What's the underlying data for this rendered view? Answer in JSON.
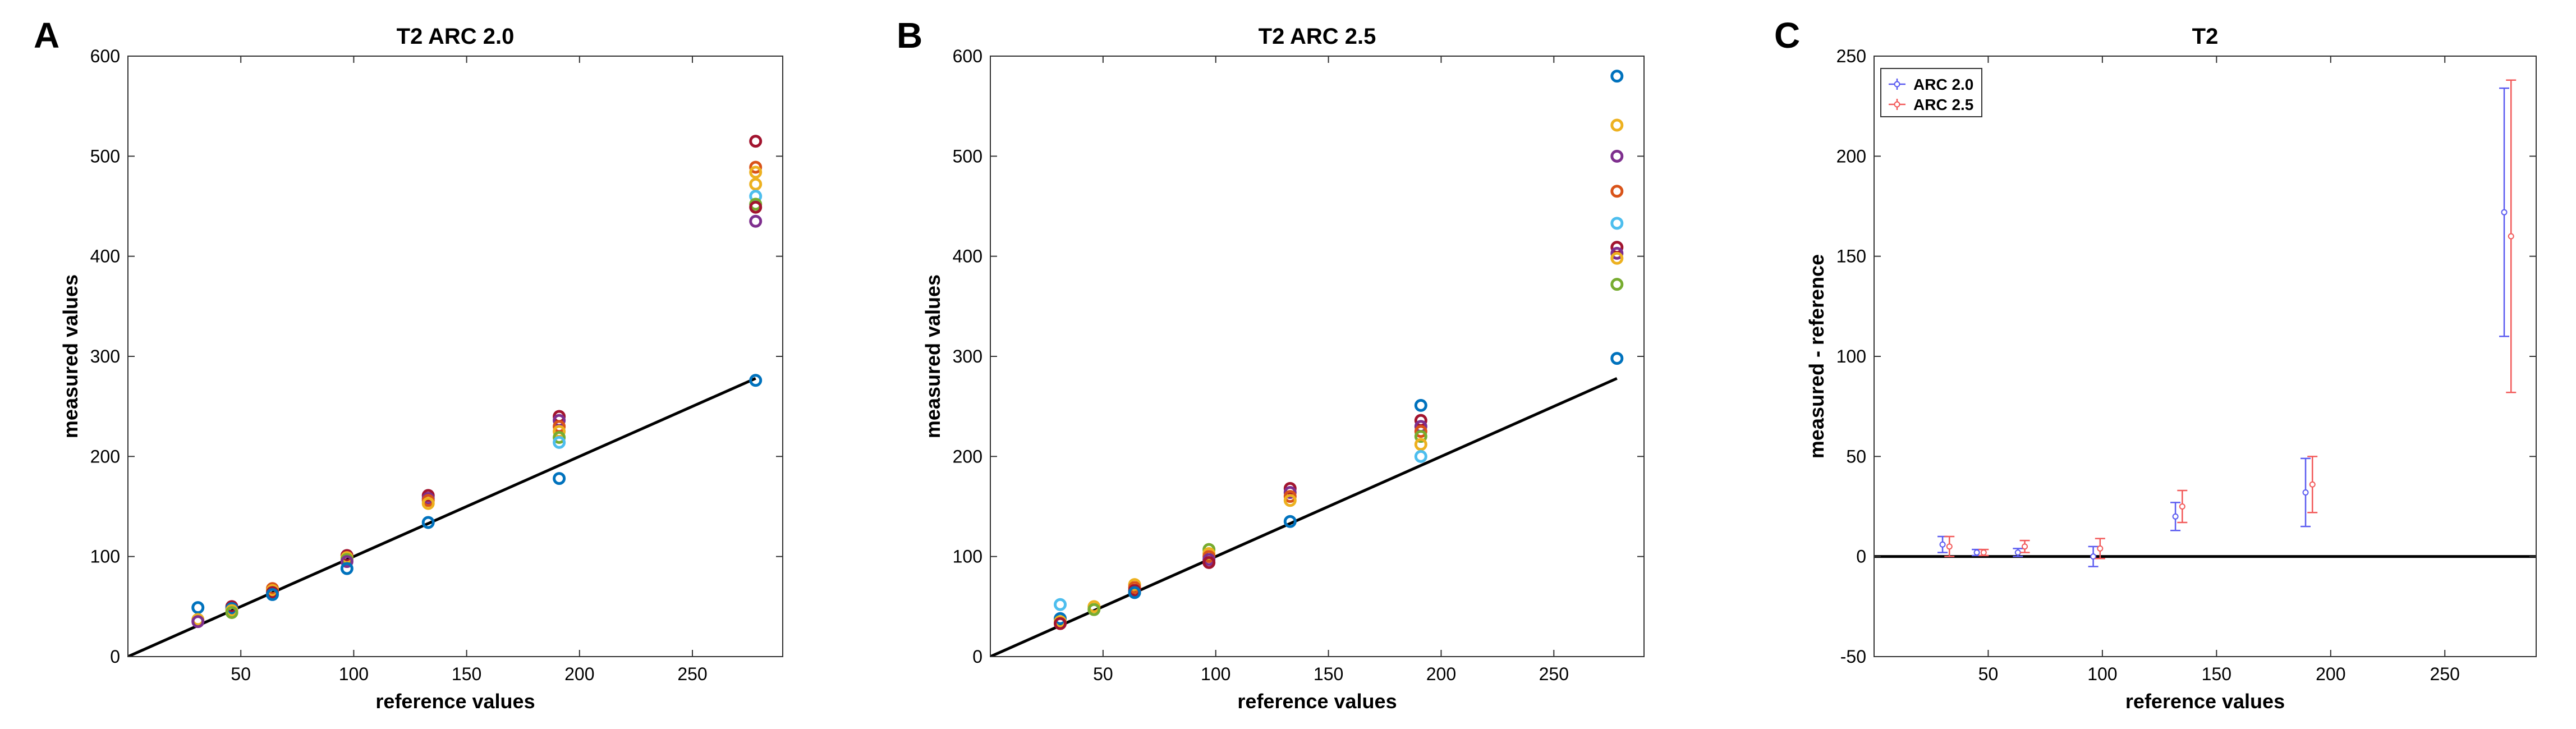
{
  "figure": {
    "panels": [
      {
        "letter": "A"
      },
      {
        "letter": "B"
      },
      {
        "letter": "C"
      }
    ]
  },
  "chart_data": [
    {
      "type": "scatter",
      "title": "T2 ARC 2.0",
      "xlabel": "reference values",
      "ylabel": "measured values",
      "xlim": [
        0,
        290
      ],
      "ylim": [
        0,
        600
      ],
      "xticks": [
        50,
        100,
        150,
        200,
        250
      ],
      "yticks": [
        0,
        100,
        200,
        300,
        400,
        500,
        600
      ],
      "grid": false,
      "identity_line": {
        "x": [
          -20,
          278
        ],
        "y": [
          -20,
          278
        ],
        "color": "#000000"
      },
      "points": [
        {
          "x": 31,
          "y": 49,
          "color": "#0072BD"
        },
        {
          "x": 31,
          "y": 37,
          "color": "#EDB120"
        },
        {
          "x": 31,
          "y": 35,
          "color": "#7E2F8E"
        },
        {
          "x": 46,
          "y": 50,
          "color": "#A2142F"
        },
        {
          "x": 46,
          "y": 48,
          "color": "#0072BD"
        },
        {
          "x": 46,
          "y": 46,
          "color": "#EDB120"
        },
        {
          "x": 46,
          "y": 44,
          "color": "#77AC30"
        },
        {
          "x": 64,
          "y": 68,
          "color": "#D95319"
        },
        {
          "x": 64,
          "y": 66,
          "color": "#EDB120"
        },
        {
          "x": 64,
          "y": 64,
          "color": "#A2142F"
        },
        {
          "x": 64,
          "y": 62,
          "color": "#0072BD"
        },
        {
          "x": 97,
          "y": 101,
          "color": "#A2142F"
        },
        {
          "x": 97,
          "y": 99,
          "color": "#EDB120"
        },
        {
          "x": 97,
          "y": 97,
          "color": "#77AC30"
        },
        {
          "x": 97,
          "y": 95,
          "color": "#7E2F8E"
        },
        {
          "x": 97,
          "y": 88,
          "color": "#0072BD"
        },
        {
          "x": 133,
          "y": 161,
          "color": "#A2142F"
        },
        {
          "x": 133,
          "y": 158,
          "color": "#7E2F8E"
        },
        {
          "x": 133,
          "y": 156,
          "color": "#D95319"
        },
        {
          "x": 133,
          "y": 153,
          "color": "#EDB120"
        },
        {
          "x": 133,
          "y": 134,
          "color": "#0072BD"
        },
        {
          "x": 191,
          "y": 240,
          "color": "#A2142F"
        },
        {
          "x": 191,
          "y": 236,
          "color": "#7E2F8E"
        },
        {
          "x": 191,
          "y": 230,
          "color": "#D95319"
        },
        {
          "x": 191,
          "y": 225,
          "color": "#EDB120"
        },
        {
          "x": 191,
          "y": 219,
          "color": "#77AC30"
        },
        {
          "x": 191,
          "y": 214,
          "color": "#4DBEEE"
        },
        {
          "x": 191,
          "y": 178,
          "color": "#0072BD"
        },
        {
          "x": 278,
          "y": 515,
          "color": "#A2142F"
        },
        {
          "x": 278,
          "y": 489,
          "color": "#D95319"
        },
        {
          "x": 278,
          "y": 484,
          "color": "#EDB120"
        },
        {
          "x": 278,
          "y": 472,
          "color": "#EDB120"
        },
        {
          "x": 278,
          "y": 460,
          "color": "#4DBEEE"
        },
        {
          "x": 278,
          "y": 452,
          "color": "#77AC30"
        },
        {
          "x": 278,
          "y": 449,
          "color": "#A2142F"
        },
        {
          "x": 278,
          "y": 435,
          "color": "#7E2F8E"
        },
        {
          "x": 278,
          "y": 276,
          "color": "#0072BD"
        }
      ]
    },
    {
      "type": "scatter",
      "title": "T2 ARC 2.5",
      "xlabel": "reference values",
      "ylabel": "measured values",
      "xlim": [
        0,
        290
      ],
      "ylim": [
        0,
        600
      ],
      "xticks": [
        50,
        100,
        150,
        200,
        250
      ],
      "yticks": [
        0,
        100,
        200,
        300,
        400,
        500,
        600
      ],
      "grid": false,
      "identity_line": {
        "x": [
          -20,
          278
        ],
        "y": [
          -20,
          278
        ],
        "color": "#000000"
      },
      "points": [
        {
          "x": 31,
          "y": 52,
          "color": "#4DBEEE"
        },
        {
          "x": 31,
          "y": 38,
          "color": "#0072BD"
        },
        {
          "x": 31,
          "y": 35,
          "color": "#EDB120"
        },
        {
          "x": 31,
          "y": 33,
          "color": "#A2142F"
        },
        {
          "x": 46,
          "y": 50,
          "color": "#EDB120"
        },
        {
          "x": 46,
          "y": 47,
          "color": "#77AC30"
        },
        {
          "x": 64,
          "y": 72,
          "color": "#EDB120"
        },
        {
          "x": 64,
          "y": 69,
          "color": "#D95319"
        },
        {
          "x": 64,
          "y": 66,
          "color": "#A2142F"
        },
        {
          "x": 64,
          "y": 64,
          "color": "#0072BD"
        },
        {
          "x": 97,
          "y": 107,
          "color": "#77AC30"
        },
        {
          "x": 97,
          "y": 103,
          "color": "#EDB120"
        },
        {
          "x": 97,
          "y": 100,
          "color": "#D95319"
        },
        {
          "x": 97,
          "y": 97,
          "color": "#7E2F8E"
        },
        {
          "x": 97,
          "y": 94,
          "color": "#A2142F"
        },
        {
          "x": 133,
          "y": 168,
          "color": "#A2142F"
        },
        {
          "x": 133,
          "y": 164,
          "color": "#7E2F8E"
        },
        {
          "x": 133,
          "y": 160,
          "color": "#D95319"
        },
        {
          "x": 133,
          "y": 156,
          "color": "#EDB120"
        },
        {
          "x": 133,
          "y": 135,
          "color": "#0072BD"
        },
        {
          "x": 191,
          "y": 251,
          "color": "#0072BD"
        },
        {
          "x": 191,
          "y": 236,
          "color": "#A2142F"
        },
        {
          "x": 191,
          "y": 230,
          "color": "#7E2F8E"
        },
        {
          "x": 191,
          "y": 225,
          "color": "#D95319"
        },
        {
          "x": 191,
          "y": 220,
          "color": "#77AC30"
        },
        {
          "x": 191,
          "y": 212,
          "color": "#EDB120"
        },
        {
          "x": 191,
          "y": 200,
          "color": "#4DBEEE"
        },
        {
          "x": 278,
          "y": 580,
          "color": "#0072BD"
        },
        {
          "x": 278,
          "y": 531,
          "color": "#EDB120"
        },
        {
          "x": 278,
          "y": 500,
          "color": "#7E2F8E"
        },
        {
          "x": 278,
          "y": 465,
          "color": "#D95319"
        },
        {
          "x": 278,
          "y": 433,
          "color": "#4DBEEE"
        },
        {
          "x": 278,
          "y": 409,
          "color": "#A2142F"
        },
        {
          "x": 278,
          "y": 403,
          "color": "#7E2F8E"
        },
        {
          "x": 278,
          "y": 398,
          "color": "#EDB120"
        },
        {
          "x": 278,
          "y": 372,
          "color": "#77AC30"
        },
        {
          "x": 278,
          "y": 298,
          "color": "#0072BD"
        }
      ]
    },
    {
      "type": "errorbar",
      "title": "T2",
      "xlabel": "reference values",
      "ylabel": "measured - reference",
      "xlim": [
        0,
        290
      ],
      "ylim": [
        -50,
        250
      ],
      "xticks": [
        50,
        100,
        150,
        200,
        250
      ],
      "yticks": [
        -50,
        0,
        50,
        100,
        150,
        200,
        250
      ],
      "grid": false,
      "legend": {
        "position": "top-left"
      },
      "zero_line": {
        "y": 0,
        "color": "#000000"
      },
      "series": [
        {
          "name": "ARC 2.0",
          "color": "#5B5BF0",
          "points": [
            {
              "x": 30,
              "y": 6,
              "err": 4
            },
            {
              "x": 45,
              "y": 2,
              "err": 1.5
            },
            {
              "x": 63,
              "y": 2,
              "err": 2
            },
            {
              "x": 96,
              "y": 0,
              "err": 5
            },
            {
              "x": 132,
              "y": 20,
              "err": 7
            },
            {
              "x": 189,
              "y": 32,
              "err": 17
            },
            {
              "x": 276,
              "y": 172,
              "err": 62
            }
          ]
        },
        {
          "name": "ARC 2.5",
          "color": "#F25A5A",
          "points": [
            {
              "x": 33,
              "y": 5,
              "err": 5
            },
            {
              "x": 48,
              "y": 2,
              "err": 1.5
            },
            {
              "x": 66,
              "y": 5,
              "err": 3
            },
            {
              "x": 99,
              "y": 4,
              "err": 5
            },
            {
              "x": 135,
              "y": 25,
              "err": 8
            },
            {
              "x": 192,
              "y": 36,
              "err": 14
            },
            {
              "x": 279,
              "y": 160,
              "err": 78
            }
          ]
        }
      ]
    }
  ]
}
